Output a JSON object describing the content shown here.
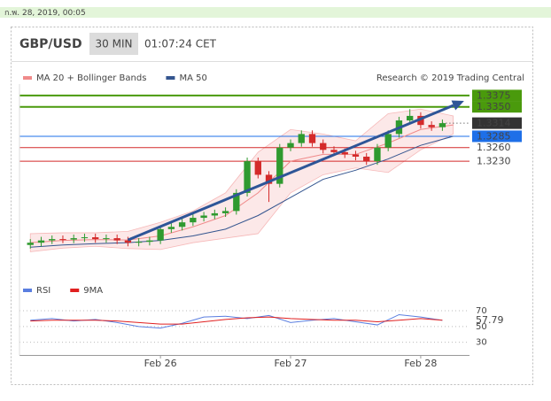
{
  "date_bar": "ก.พ. 28, 2019, 00:05",
  "header": {
    "symbol": "GBP/USD",
    "timeframe": "30 MIN",
    "time": "01:07:24 CET"
  },
  "chart_data": [
    {
      "type": "candlestick",
      "credit": "Research © 2019 Trading Central",
      "up_color": "#2f9a2f",
      "down_color": "#d42a2a",
      "x": [
        -24,
        -22,
        -20,
        -18,
        -16,
        -14,
        -12,
        -10,
        -8,
        -6,
        -4,
        -2,
        0,
        2,
        4,
        6,
        8,
        10,
        12,
        14,
        16,
        18,
        20,
        22,
        24,
        26,
        28,
        30,
        32,
        34,
        36,
        38,
        40,
        42,
        44,
        46,
        48,
        50,
        52
      ],
      "open": [
        1.3045,
        1.305,
        1.3055,
        1.3058,
        1.3057,
        1.306,
        1.3062,
        1.3058,
        1.306,
        1.3055,
        1.305,
        1.3052,
        1.3055,
        1.308,
        1.3085,
        1.3095,
        1.3105,
        1.311,
        1.3115,
        1.312,
        1.316,
        1.323,
        1.32,
        1.318,
        1.326,
        1.327,
        1.329,
        1.327,
        1.3255,
        1.325,
        1.3245,
        1.324,
        1.323,
        1.326,
        1.329,
        1.332,
        1.333,
        1.331,
        1.3305
      ],
      "high": [
        1.3058,
        1.3063,
        1.3066,
        1.3066,
        1.3068,
        1.307,
        1.307,
        1.3068,
        1.3068,
        1.3063,
        1.306,
        1.3063,
        1.3088,
        1.3093,
        1.3103,
        1.3113,
        1.3118,
        1.3123,
        1.3128,
        1.3168,
        1.3238,
        1.3238,
        1.3208,
        1.3268,
        1.3278,
        1.3298,
        1.3298,
        1.3278,
        1.3263,
        1.3258,
        1.3253,
        1.3248,
        1.3268,
        1.3298,
        1.3328,
        1.3345,
        1.3338,
        1.3318,
        1.3322
      ],
      "low": [
        1.3037,
        1.3042,
        1.3047,
        1.3049,
        1.3049,
        1.3052,
        1.305,
        1.305,
        1.3047,
        1.3042,
        1.3042,
        1.3044,
        1.3047,
        1.3072,
        1.3077,
        1.3087,
        1.3097,
        1.3102,
        1.3107,
        1.3112,
        1.3152,
        1.3192,
        1.314,
        1.3172,
        1.3252,
        1.3262,
        1.3262,
        1.3247,
        1.3242,
        1.3237,
        1.3232,
        1.3222,
        1.3222,
        1.3252,
        1.3282,
        1.3312,
        1.3302,
        1.3297,
        1.3297
      ],
      "close": [
        1.305,
        1.3055,
        1.3058,
        1.3057,
        1.306,
        1.3062,
        1.3058,
        1.306,
        1.3055,
        1.305,
        1.3052,
        1.3055,
        1.308,
        1.3085,
        1.3095,
        1.3105,
        1.311,
        1.3115,
        1.312,
        1.316,
        1.323,
        1.32,
        1.318,
        1.326,
        1.327,
        1.329,
        1.327,
        1.3255,
        1.325,
        1.3245,
        1.324,
        1.323,
        1.326,
        1.329,
        1.332,
        1.333,
        1.331,
        1.3305,
        1.3314
      ],
      "series": [
        {
          "name": "MA 20 + Bollinger Bands",
          "color": "#f08a8a",
          "x": [
            -24,
            -18,
            -12,
            -6,
            0,
            6,
            12,
            18,
            24,
            30,
            36,
            42,
            48,
            54
          ],
          "values": [
            1.305,
            1.3055,
            1.3057,
            1.3056,
            1.3065,
            1.3085,
            1.311,
            1.316,
            1.323,
            1.3245,
            1.3245,
            1.327,
            1.33,
            1.331
          ],
          "upper": [
            1.307,
            1.3072,
            1.3072,
            1.3075,
            1.3095,
            1.312,
            1.316,
            1.325,
            1.33,
            1.329,
            1.3275,
            1.3335,
            1.3345,
            1.333
          ],
          "lower": [
            1.303,
            1.3038,
            1.3042,
            1.3037,
            1.3035,
            1.305,
            1.306,
            1.307,
            1.316,
            1.32,
            1.3215,
            1.3205,
            1.3255,
            1.329
          ]
        },
        {
          "name": "MA 50",
          "color": "#34558f",
          "x": [
            -24,
            -18,
            -12,
            -6,
            0,
            6,
            12,
            18,
            24,
            30,
            36,
            42,
            48,
            54
          ],
          "values": [
            1.304,
            1.3045,
            1.3048,
            1.305,
            1.3055,
            1.3065,
            1.308,
            1.311,
            1.315,
            1.319,
            1.321,
            1.3235,
            1.3265,
            1.3285
          ]
        }
      ],
      "levels": [
        {
          "value": 1.3375,
          "label": "1.3375",
          "color": "#4a9a0c",
          "filled": true,
          "style": "solid"
        },
        {
          "value": 1.335,
          "label": "1.3350",
          "color": "#4a9a0c",
          "filled": true,
          "style": "solid"
        },
        {
          "value": 1.3314,
          "label": "1.3314",
          "color": "#333333",
          "filled": true,
          "style": "dotted"
        },
        {
          "value": 1.3285,
          "label": "1.3285",
          "color": "#1e6fe8",
          "filled": true,
          "style": "solid"
        },
        {
          "value": 1.326,
          "label": "1.3260",
          "color": "#d42a2a",
          "filled": false,
          "style": "solid"
        },
        {
          "value": 1.323,
          "label": "1.3230",
          "color": "#d42a2a",
          "filled": false,
          "style": "solid"
        }
      ],
      "trendline": {
        "x": [
          -6,
          56
        ],
        "y": [
          1.3056,
          1.3363
        ],
        "color": "#2e5597"
      },
      "xlim": [
        -26,
        57
      ],
      "ylim": [
        1.298,
        1.341
      ],
      "xticks": [
        {
          "value": 0,
          "label": "Feb 26"
        },
        {
          "value": 24,
          "label": "Feb 27"
        },
        {
          "value": 48,
          "label": "Feb 28"
        }
      ]
    },
    {
      "type": "line",
      "series": [
        {
          "name": "RSI",
          "color": "#5a7ee0",
          "x": [
            -24,
            -20,
            -16,
            -12,
            -8,
            -4,
            0,
            4,
            8,
            12,
            16,
            20,
            24,
            28,
            32,
            36,
            40,
            44,
            48,
            52
          ],
          "values": [
            58,
            60,
            57,
            59,
            55,
            50,
            48,
            54,
            62,
            63,
            60,
            64,
            55,
            58,
            60,
            56,
            52,
            65,
            62,
            57.79
          ]
        },
        {
          "name": "9MA",
          "color": "#e02020",
          "x": [
            -24,
            -20,
            -16,
            -12,
            -8,
            -4,
            0,
            4,
            8,
            12,
            16,
            20,
            24,
            28,
            32,
            36,
            40,
            44,
            48,
            52
          ],
          "values": [
            57,
            58,
            58,
            58,
            57,
            55,
            53,
            53,
            56,
            59,
            61,
            62,
            60,
            59,
            58,
            58,
            56,
            58,
            60,
            58
          ]
        }
      ],
      "xlim": [
        -26,
        57
      ],
      "ylim": [
        15,
        88
      ],
      "yticks": [
        70,
        50,
        30
      ]
    }
  ]
}
